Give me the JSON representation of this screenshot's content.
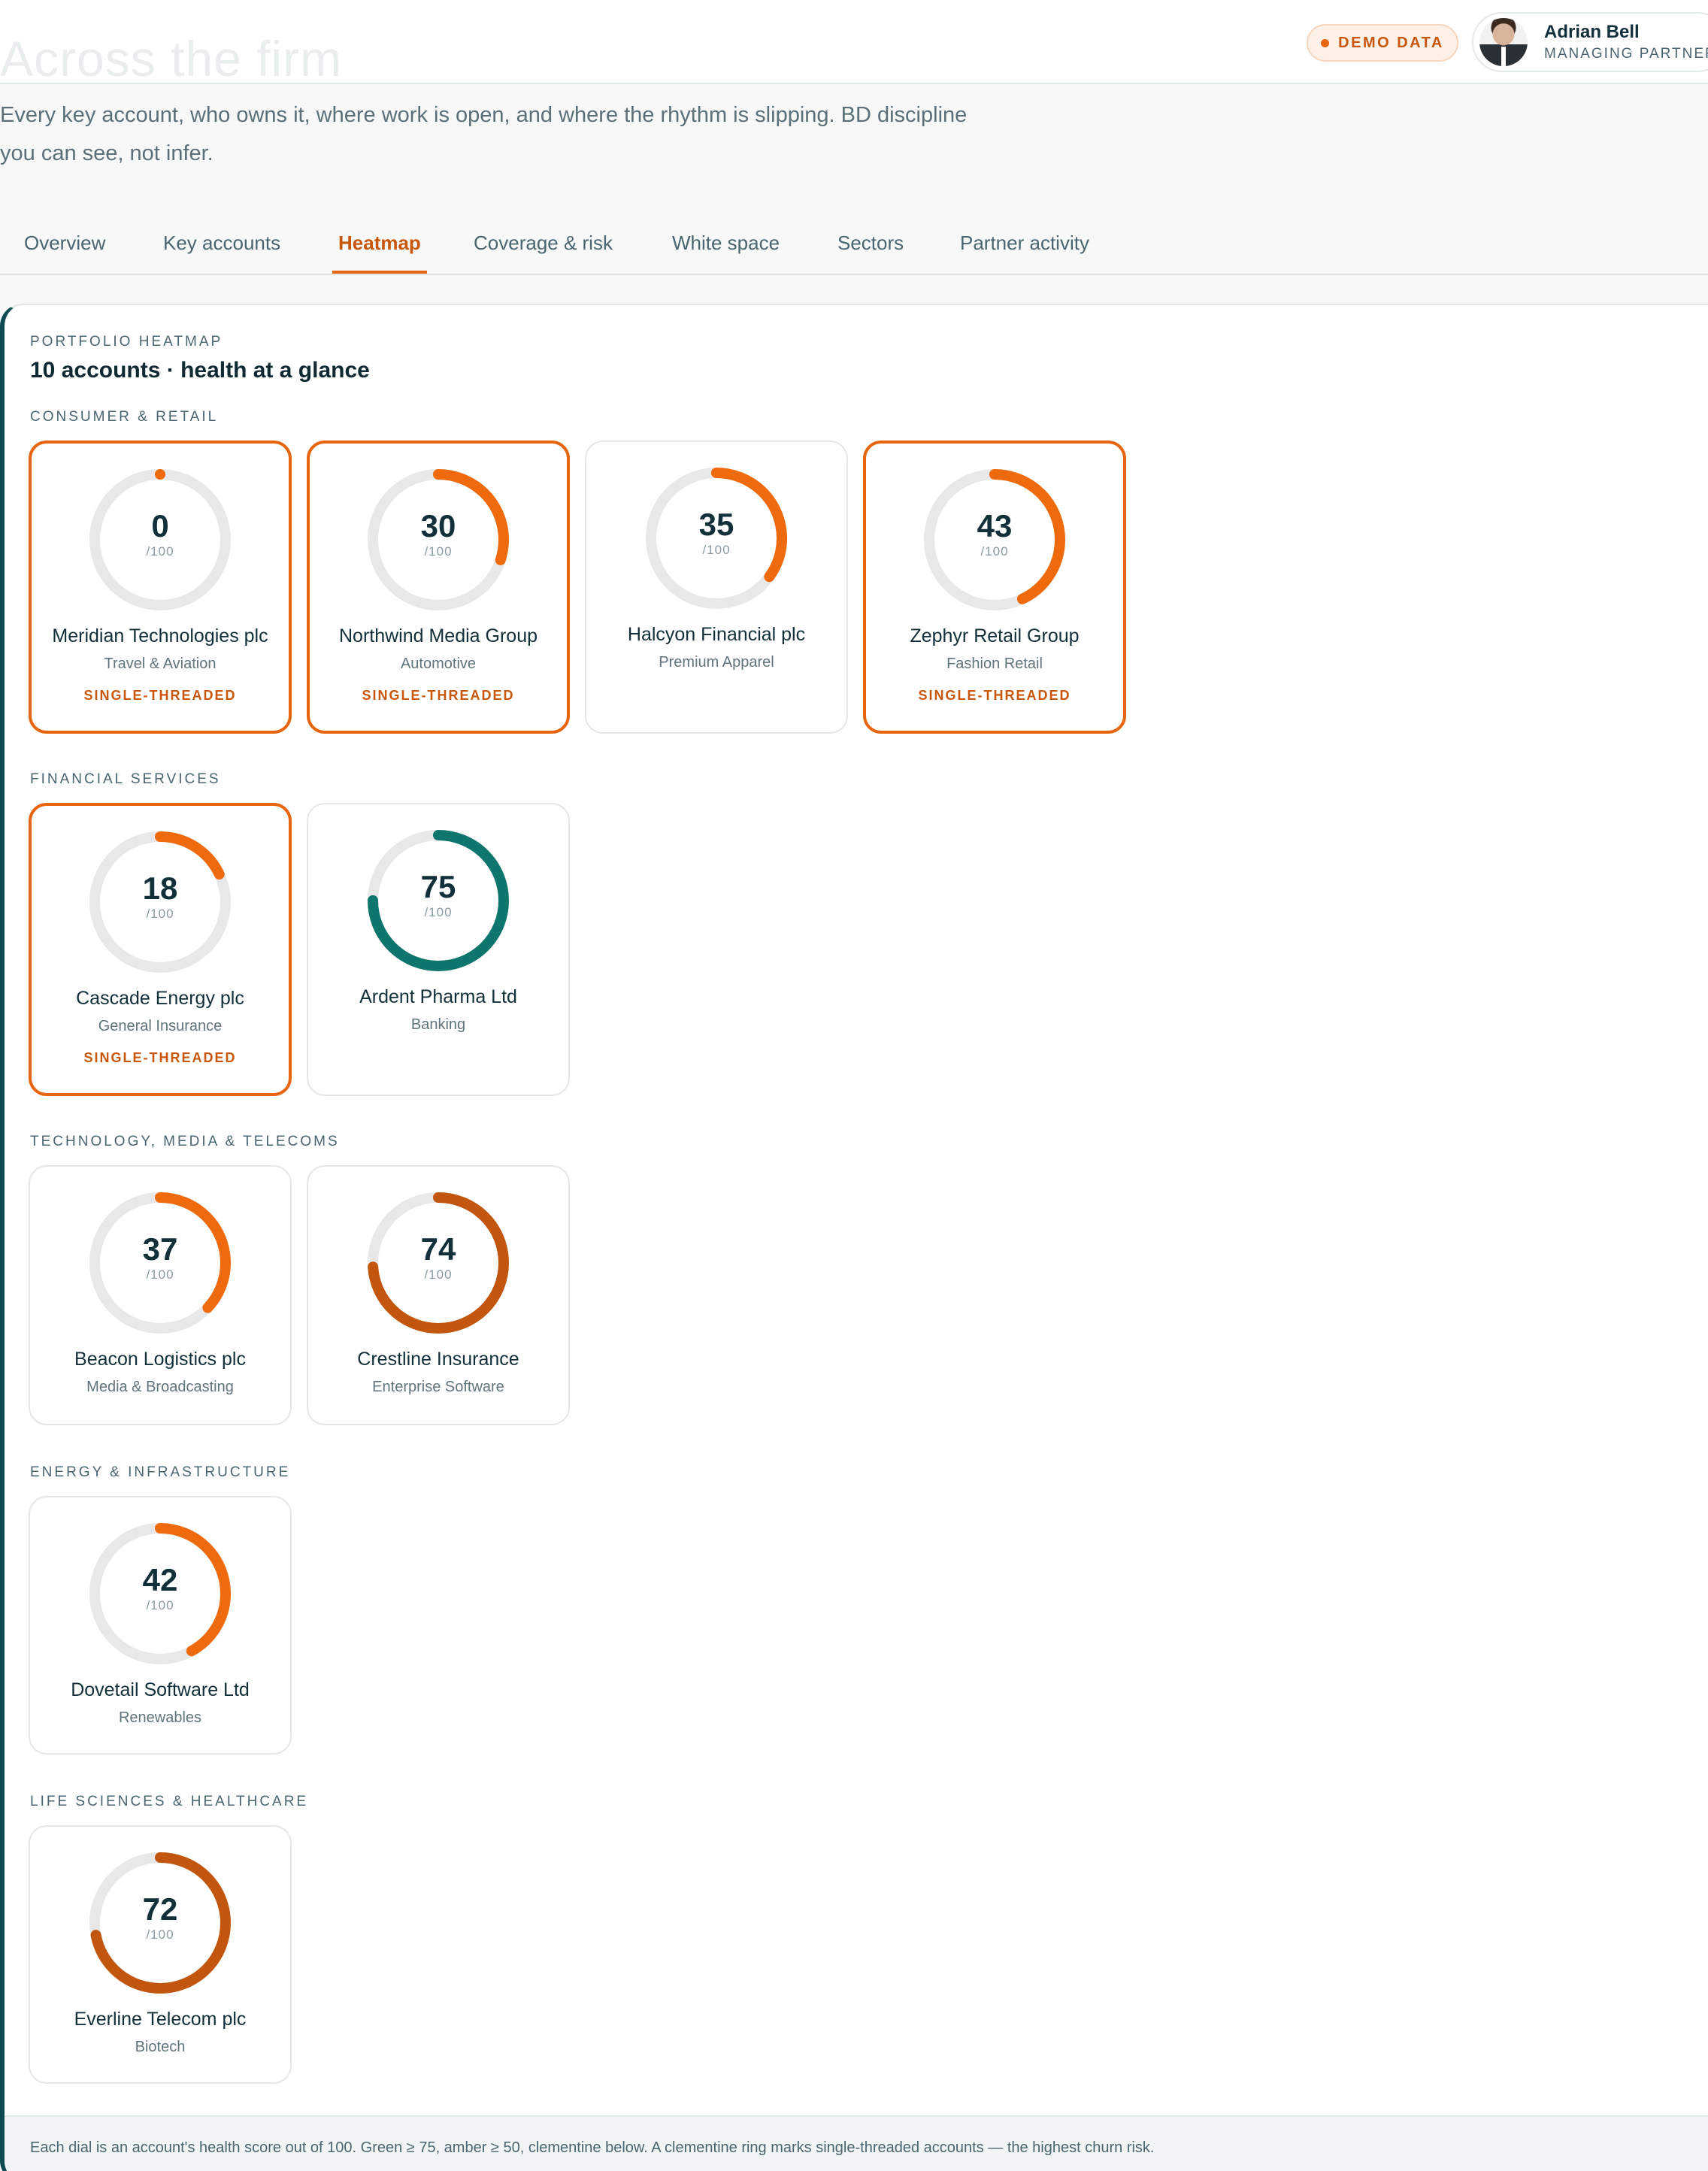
{
  "header": {
    "ghost_title": "Across the firm",
    "subtitle_line1": "Every key account, who owns it, where work is open, and where the rhythm is slipping. BD discipline",
    "subtitle_line2": "you can see, not infer.",
    "demo_badge": "DEMO DATA",
    "user": {
      "name": "Adrian Bell",
      "role": "MANAGING PARTNER"
    }
  },
  "tabs": [
    {
      "label": "Overview",
      "active": false
    },
    {
      "label": "Key accounts",
      "active": false
    },
    {
      "label": "Heatmap",
      "active": true
    },
    {
      "label": "Coverage & risk",
      "active": false
    },
    {
      "label": "White space",
      "active": false
    },
    {
      "label": "Sectors",
      "active": false
    },
    {
      "label": "Partner activity",
      "active": false
    }
  ],
  "heatmap": {
    "kicker": "PORTFOLIO HEATMAP",
    "title": "10 accounts · health at a glance",
    "dial_max": "/100",
    "single_threaded_label": "SINGLE-THREADED",
    "colors": {
      "track": "#e8e8e8",
      "green": "#0f766e",
      "amber": "#c2560f",
      "clementine": "#ee6a0c"
    },
    "sectors": [
      {
        "label": "CONSUMER & RETAIL",
        "accounts": [
          {
            "name": "Meridian Technologies plc",
            "sector": "Travel & Aviation",
            "score": 0,
            "single_threaded": true
          },
          {
            "name": "Northwind Media Group",
            "sector": "Automotive",
            "score": 30,
            "single_threaded": true
          },
          {
            "name": "Halcyon Financial plc",
            "sector": "Premium Apparel",
            "score": 35,
            "single_threaded": false
          },
          {
            "name": "Zephyr Retail Group",
            "sector": "Fashion Retail",
            "score": 43,
            "single_threaded": true
          }
        ]
      },
      {
        "label": "FINANCIAL SERVICES",
        "accounts": [
          {
            "name": "Cascade Energy plc",
            "sector": "General Insurance",
            "score": 18,
            "single_threaded": true
          },
          {
            "name": "Ardent Pharma Ltd",
            "sector": "Banking",
            "score": 75,
            "single_threaded": false
          }
        ]
      },
      {
        "label": "TECHNOLOGY, MEDIA & TELECOMS",
        "accounts": [
          {
            "name": "Beacon Logistics plc",
            "sector": "Media & Broadcasting",
            "score": 37,
            "single_threaded": false
          },
          {
            "name": "Crestline Insurance",
            "sector": "Enterprise Software",
            "score": 74,
            "single_threaded": false
          }
        ]
      },
      {
        "label": "ENERGY & INFRASTRUCTURE",
        "accounts": [
          {
            "name": "Dovetail Software Ltd",
            "sector": "Renewables",
            "score": 42,
            "single_threaded": false
          }
        ]
      },
      {
        "label": "LIFE SCIENCES & HEALTHCARE",
        "accounts": [
          {
            "name": "Everline Telecom plc",
            "sector": "Biotech",
            "score": 72,
            "single_threaded": false
          }
        ]
      }
    ],
    "footnote": "Each dial is an account's health score out of 100. Green ≥ 75, amber ≥ 50, clementine below. A clementine ring marks single-threaded accounts — the highest churn risk."
  }
}
